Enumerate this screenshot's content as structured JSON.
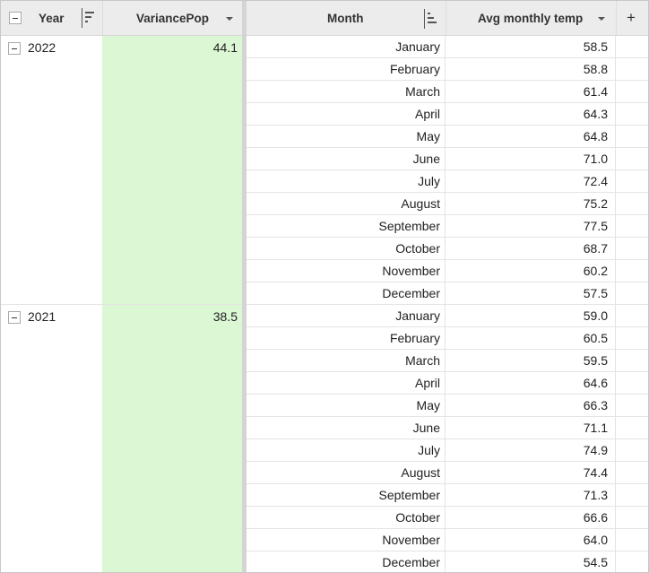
{
  "columns": {
    "year": "Year",
    "variance": "VariancePop",
    "month": "Month",
    "temp": "Avg monthly temp",
    "add": "+"
  },
  "colors": {
    "highlight": "#dcf7d4",
    "header": "#ececec"
  },
  "groups": [
    {
      "year": "2022",
      "variance": "44.1",
      "rows": [
        [
          "January",
          "58.5"
        ],
        [
          "February",
          "58.8"
        ],
        [
          "March",
          "61.4"
        ],
        [
          "April",
          "64.3"
        ],
        [
          "May",
          "64.8"
        ],
        [
          "June",
          "71.0"
        ],
        [
          "July",
          "72.4"
        ],
        [
          "August",
          "75.2"
        ],
        [
          "September",
          "77.5"
        ],
        [
          "October",
          "68.7"
        ],
        [
          "November",
          "60.2"
        ],
        [
          "December",
          "57.5"
        ]
      ]
    },
    {
      "year": "2021",
      "variance": "38.5",
      "rows": [
        [
          "January",
          "59.0"
        ],
        [
          "February",
          "60.5"
        ],
        [
          "March",
          "59.5"
        ],
        [
          "April",
          "64.6"
        ],
        [
          "May",
          "66.3"
        ],
        [
          "June",
          "71.1"
        ],
        [
          "July",
          "74.9"
        ],
        [
          "August",
          "74.4"
        ],
        [
          "September",
          "71.3"
        ],
        [
          "October",
          "66.6"
        ],
        [
          "November",
          "64.0"
        ],
        [
          "December",
          "54.5"
        ]
      ]
    }
  ]
}
